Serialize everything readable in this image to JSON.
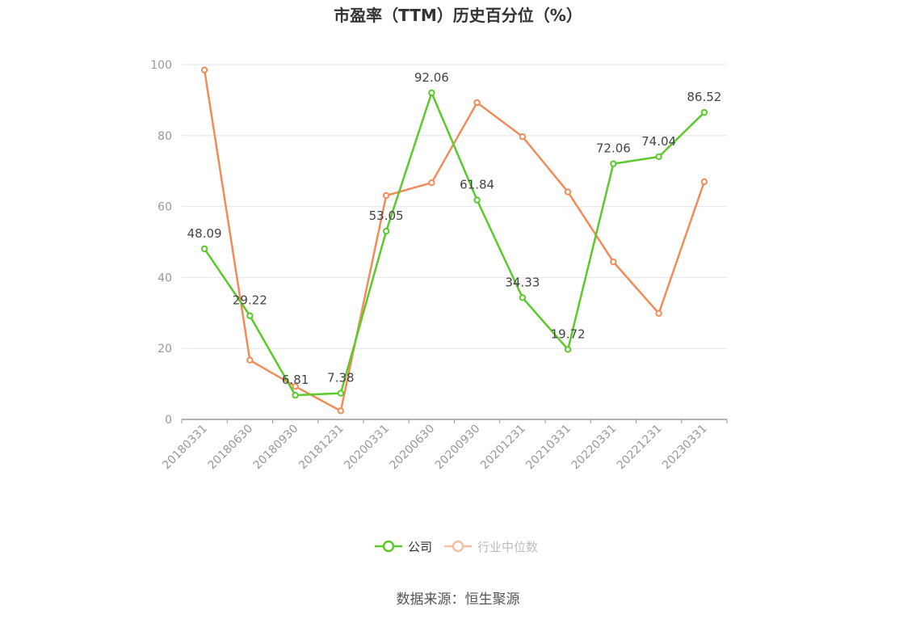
{
  "chart_data": {
    "type": "line",
    "title": "市盈率（TTM）历史百分位（%）",
    "xlabel": "",
    "ylabel": "",
    "ylim": [
      0,
      100
    ],
    "yticks": [
      0,
      20,
      40,
      60,
      80,
      100
    ],
    "grid": true,
    "legend_position": "bottom",
    "categories": [
      "20180331",
      "20180630",
      "20180930",
      "20181231",
      "20200331",
      "20200630",
      "20200930",
      "20201231",
      "20210331",
      "20220331",
      "20221231",
      "20230331"
    ],
    "series": [
      {
        "name": "公司",
        "color": "#5cc92a",
        "values": [
          48.09,
          29.22,
          6.81,
          7.38,
          53.05,
          92.06,
          61.84,
          34.33,
          19.72,
          72.06,
          74.04,
          86.52
        ],
        "labels": [
          "48.09",
          "29.22",
          "6.81",
          "7.38",
          "53.05",
          "92.06",
          "61.84",
          "34.33",
          "19.72",
          "72.06",
          "74.04",
          "86.52"
        ]
      },
      {
        "name": "行业中位数",
        "color": "#f08c5a",
        "values": [
          98.5,
          16.7,
          9.3,
          2.4,
          63.1,
          66.7,
          89.3,
          79.7,
          64.1,
          44.4,
          29.9,
          67.0
        ]
      }
    ],
    "source": "数据来源：恒生聚源"
  }
}
